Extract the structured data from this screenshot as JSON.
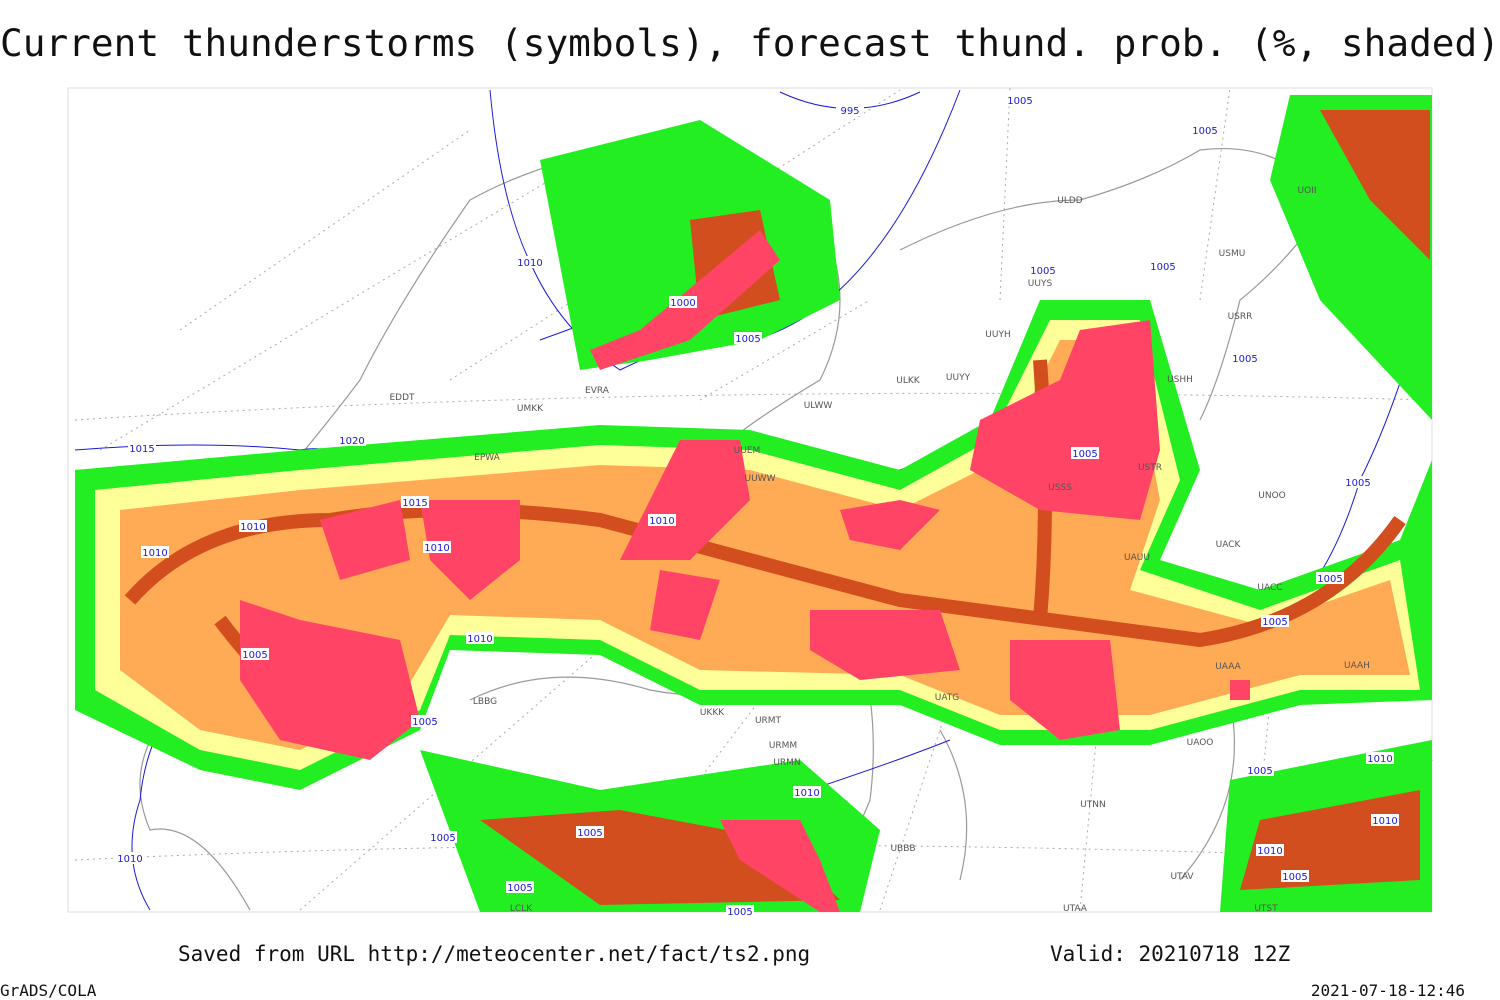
{
  "header": {
    "title": "Current thunderstorms (symbols), forecast thund. prob. (%, shaded)"
  },
  "map": {
    "isobar_labels": [
      "995",
      "1000",
      "1005",
      "1005",
      "1005",
      "1005",
      "1005",
      "1005",
      "1005",
      "1005",
      "1005",
      "1005",
      "1005",
      "1005",
      "1005",
      "1005",
      "1005",
      "1005",
      "1005",
      "1005",
      "1010",
      "1010",
      "1010",
      "1010",
      "1010",
      "1010",
      "1010",
      "1010",
      "1010",
      "1010",
      "1010",
      "1015",
      "1015",
      "1020"
    ],
    "station_labels": [
      "ULKK",
      "UUYY",
      "UUYH",
      "UUYS",
      "ULWW",
      "UUEM",
      "UUWW",
      "EDDT",
      "EPWA",
      "UMKK",
      "EVRA",
      "ULDD",
      "USSS",
      "USTR",
      "UNOO",
      "UACC",
      "UAAA",
      "UAAH",
      "UAOO",
      "UTNN",
      "UTAA",
      "UBBB",
      "URMT",
      "URMM",
      "URMN",
      "UKKK",
      "LBBG",
      "LCLK",
      "UATG",
      "USRR",
      "USMU",
      "UOII",
      "USHH",
      "UAUU",
      "UACK",
      "UTAV",
      "UTST"
    ]
  },
  "footer": {
    "source": "Saved from URL http://meteocenter.net/fact/ts2.png",
    "valid": "Valid: 20210718 12Z",
    "software": "GrADS/COLA",
    "timestamp": "2021-07-18-12:46"
  }
}
